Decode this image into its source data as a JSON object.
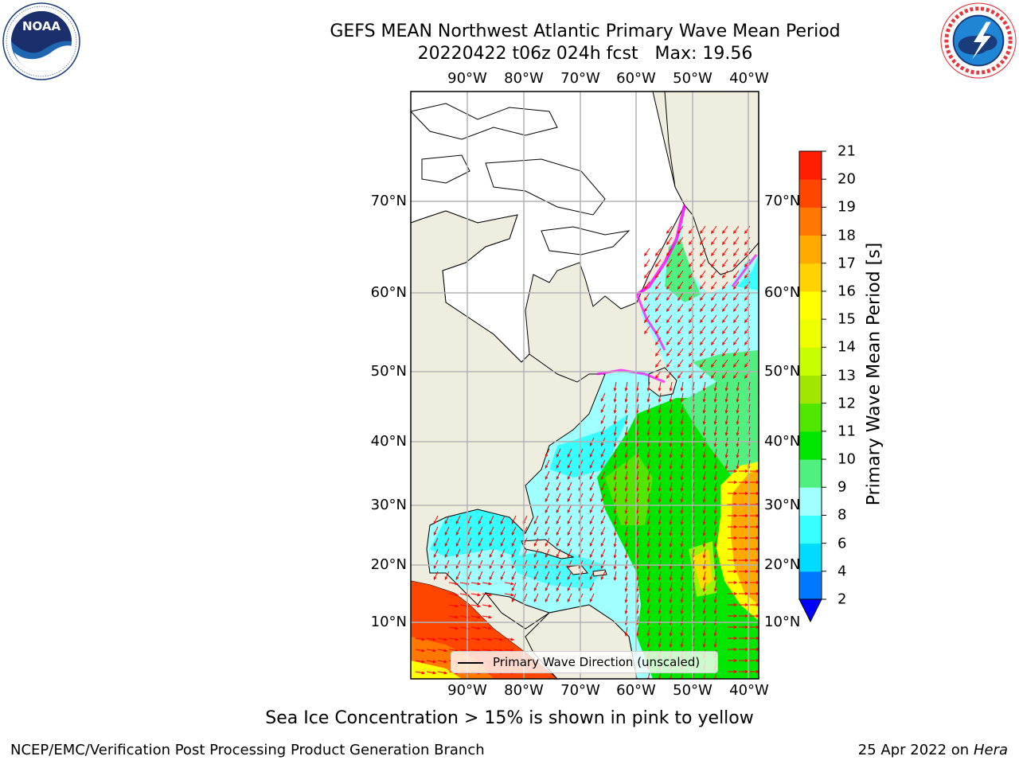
{
  "header": {
    "title_line1": "GEFS MEAN Northwest Atlantic Primary Wave Mean Period",
    "title_line2": "20220422 t06z 024h fcst   Max: 19.56"
  },
  "logos": {
    "noaa_text": "NOAA",
    "noaa_ring_text": "NATIONAL OCEANIC AND ATMOSPHERIC ADMINISTRATION · U.S. DEPARTMENT OF COMMERCE",
    "nws_ring_text": "NATIONAL WEATHER SERVICE"
  },
  "map": {
    "lon_labels": [
      "90°W",
      "80°W",
      "70°W",
      "60°W",
      "50°W",
      "40°W"
    ],
    "lat_labels": [
      "70°N",
      "60°N",
      "50°N",
      "40°N",
      "30°N",
      "20°N",
      "10°N"
    ],
    "legend_label": "Primary Wave Direction (unscaled)",
    "colors": {
      "land": "#efedde",
      "ice": "#ffffff",
      "grid": "#b4b4b4",
      "arrow": "#ff0000",
      "coast": "#000000"
    }
  },
  "colorbar": {
    "label": "Primary Wave Mean Period [s]",
    "ticks": [
      "2",
      "4",
      "6",
      "8",
      "9",
      "10",
      "11",
      "12",
      "13",
      "14",
      "15",
      "16",
      "17",
      "18",
      "19",
      "20",
      "21"
    ],
    "colors": [
      "#0078ff",
      "#00dcff",
      "#38ffff",
      "#a0ffff",
      "#50f080",
      "#00e600",
      "#50e600",
      "#a0e600",
      "#c8ff00",
      "#f0ff00",
      "#ffff00",
      "#ffd200",
      "#ffaa00",
      "#ff7800",
      "#ff4600",
      "#ff1e00"
    ],
    "under_color": "#0000ff"
  },
  "caption": "Sea Ice Concentration > 15% is shown in pink to yellow",
  "footer": {
    "left": "NCEP/EMC/Verification Post Processing Product Generation Branch",
    "date": "25 Apr 2022 on",
    "machine": "Hera"
  }
}
